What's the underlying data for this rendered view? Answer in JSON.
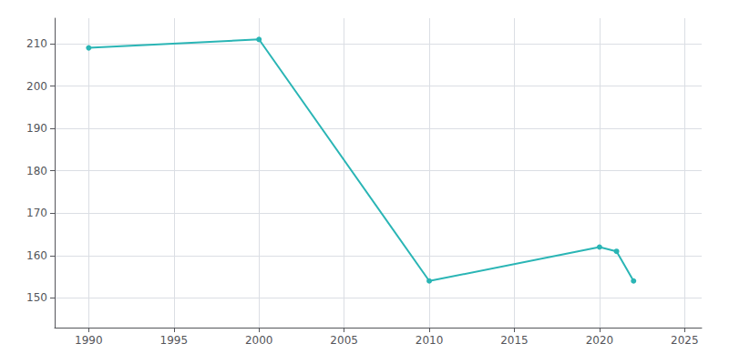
{
  "chart_data": {
    "type": "line",
    "x": [
      1990,
      2000,
      2010,
      2020,
      2021,
      2022
    ],
    "values": [
      209,
      211,
      154,
      162,
      161,
      154
    ],
    "color": "#2ab5b5",
    "marker": "circle",
    "xlim": [
      1988,
      2026
    ],
    "ylim": [
      143,
      216
    ],
    "xticks": [
      1990,
      1995,
      2000,
      2005,
      2010,
      2015,
      2020,
      2025
    ],
    "yticks": [
      150,
      160,
      170,
      180,
      190,
      200,
      210
    ],
    "grid": true
  }
}
